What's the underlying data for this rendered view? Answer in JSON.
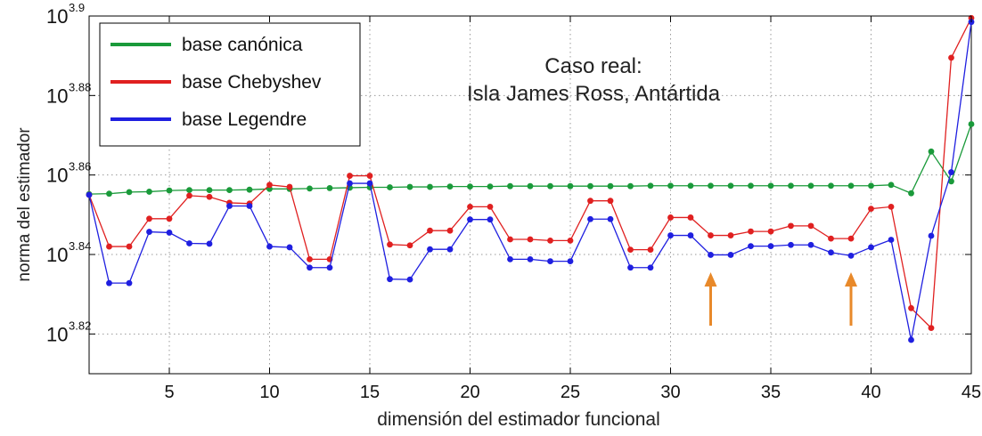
{
  "chart_data": {
    "type": "line",
    "title": "",
    "xlabel": "dimensión del estimador funcional",
    "ylabel": "norma del estimador",
    "xlim": [
      1,
      45
    ],
    "ylim": [
      3.81,
      3.9
    ],
    "y_scale": "log10",
    "grid": true,
    "legend_placement": "top-left",
    "x_ticks": [
      {
        "value": 5,
        "label": "5"
      },
      {
        "value": 10,
        "label": "10"
      },
      {
        "value": 15,
        "label": "15"
      },
      {
        "value": 20,
        "label": "20"
      },
      {
        "value": 25,
        "label": "25"
      },
      {
        "value": 30,
        "label": "30"
      },
      {
        "value": 35,
        "label": "35"
      },
      {
        "value": 40,
        "label": "40"
      },
      {
        "value": 45,
        "label": "45"
      }
    ],
    "y_ticks": [
      {
        "value": 3.82,
        "base": "10",
        "exp": "3.82"
      },
      {
        "value": 3.84,
        "base": "10",
        "exp": "3.84"
      },
      {
        "value": 3.86,
        "base": "10",
        "exp": "3.86"
      },
      {
        "value": 3.88,
        "base": "10",
        "exp": "3.88"
      },
      {
        "value": 3.9,
        "base": "10",
        "exp": "3.9"
      }
    ],
    "annotation": {
      "line1": "Caso real:",
      "line2": "Isla James Ross, Antártida"
    },
    "arrows_at_x": [
      32,
      39
    ],
    "x": [
      1,
      2,
      3,
      4,
      5,
      6,
      7,
      8,
      9,
      10,
      11,
      12,
      13,
      14,
      15,
      16,
      17,
      18,
      19,
      20,
      21,
      22,
      23,
      24,
      25,
      26,
      27,
      28,
      29,
      30,
      31,
      32,
      33,
      34,
      35,
      36,
      37,
      38,
      39,
      40,
      41,
      42,
      43,
      44,
      45
    ],
    "series": [
      {
        "name": "base canónica",
        "color": "#1a9a3a",
        "values": [
          3.8552,
          3.8553,
          3.8557,
          3.8558,
          3.8561,
          3.8562,
          3.8562,
          3.8562,
          3.8563,
          3.8565,
          3.8565,
          3.8566,
          3.8567,
          3.8568,
          3.8569,
          3.8569,
          3.857,
          3.857,
          3.8571,
          3.8571,
          3.8571,
          3.8572,
          3.8572,
          3.8572,
          3.8572,
          3.8572,
          3.8572,
          3.8572,
          3.8573,
          3.8573,
          3.8573,
          3.8573,
          3.8573,
          3.8573,
          3.8573,
          3.8573,
          3.8573,
          3.8573,
          3.8573,
          3.8573,
          3.8575,
          3.8554,
          3.8659,
          3.8584,
          3.8728
        ]
      },
      {
        "name": "base Chebyshev",
        "color": "#e02020",
        "values": [
          3.855,
          3.842,
          3.842,
          3.849,
          3.849,
          3.8548,
          3.8545,
          3.853,
          3.8528,
          3.8575,
          3.857,
          3.8388,
          3.8388,
          3.8598,
          3.8598,
          3.8425,
          3.8423,
          3.846,
          3.846,
          3.852,
          3.852,
          3.8438,
          3.8438,
          3.8435,
          3.8435,
          3.8535,
          3.8535,
          3.8412,
          3.8412,
          3.8493,
          3.8493,
          3.8448,
          3.8448,
          3.8458,
          3.8458,
          3.8472,
          3.8472,
          3.844,
          3.844,
          3.8515,
          3.852,
          3.8265,
          3.8215,
          3.8895,
          3.8995
        ]
      },
      {
        "name": "base Legendre",
        "color": "#1f1fe0",
        "values": [
          3.855,
          3.8328,
          3.8328,
          3.8457,
          3.8455,
          3.8428,
          3.8427,
          3.8522,
          3.8522,
          3.842,
          3.8418,
          3.8367,
          3.8367,
          3.8579,
          3.8579,
          3.8338,
          3.8337,
          3.8413,
          3.8413,
          3.8488,
          3.8488,
          3.8388,
          3.8388,
          3.8383,
          3.8383,
          3.8489,
          3.8489,
          3.8367,
          3.8367,
          3.8448,
          3.8448,
          3.8399,
          3.8399,
          3.8421,
          3.8421,
          3.8424,
          3.8424,
          3.8405,
          3.8397,
          3.8418,
          3.8437,
          3.8185,
          3.8447,
          3.8607,
          3.8985
        ]
      }
    ]
  }
}
